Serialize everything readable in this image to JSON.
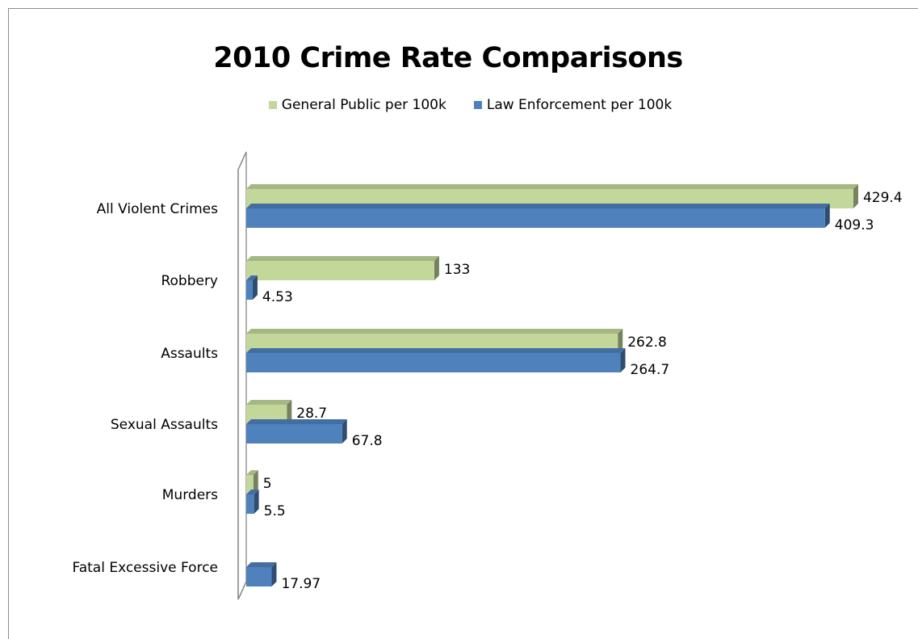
{
  "chart_data": {
    "type": "bar",
    "orientation": "horizontal",
    "title": "2010 Crime Rate Comparisons",
    "categories": [
      "All Violent Crimes",
      "Robbery",
      "Assaults",
      "Sexual Assaults",
      "Murders",
      "Fatal Excessive Force"
    ],
    "series": [
      {
        "name": "General Public per 100k",
        "color": "#c4d79b",
        "values": [
          429.4,
          133,
          262.8,
          28.7,
          5,
          null
        ],
        "labels": [
          "429.4",
          "133",
          "262.8",
          "28.7",
          "5",
          ""
        ]
      },
      {
        "name": "Law Enforcement per 100k",
        "color": "#4f81bd",
        "values": [
          409.3,
          4.53,
          264.7,
          67.8,
          5.5,
          17.97
        ],
        "labels": [
          "409.3",
          "4.53",
          "264.7",
          "67.8",
          "5.5",
          "17.97"
        ]
      }
    ],
    "xlim": [
      0,
      430
    ],
    "legend_position": "top",
    "grid": false,
    "style": "3d-bar"
  }
}
